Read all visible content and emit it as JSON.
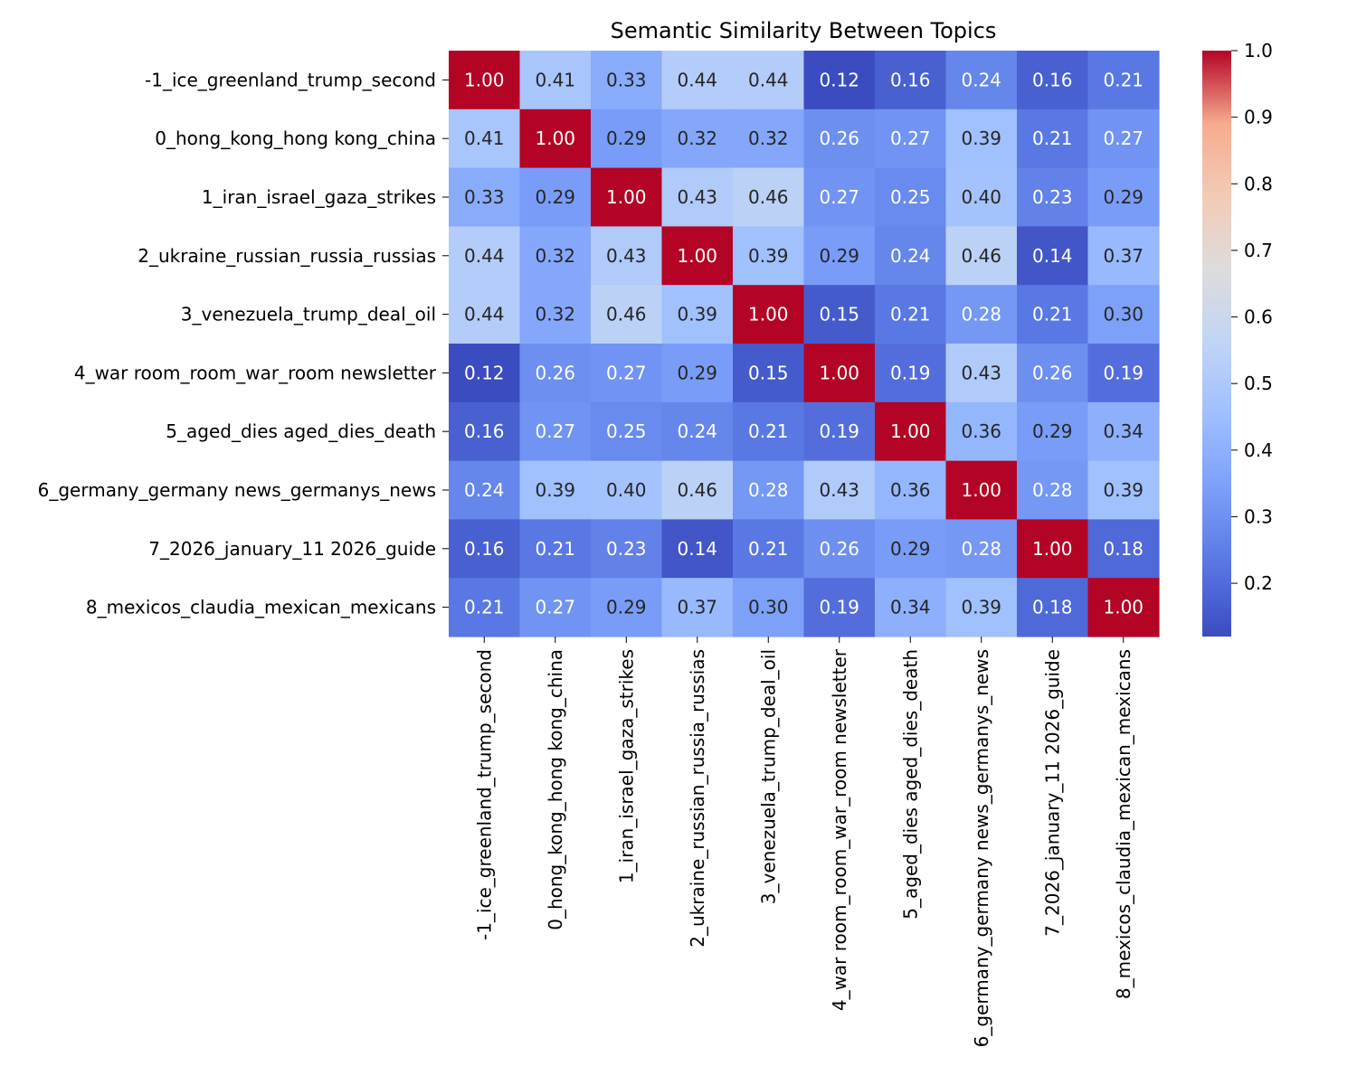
{
  "chart_data": {
    "type": "heatmap",
    "title": "Semantic Similarity Between Topics",
    "xlabel": "",
    "ylabel": "",
    "labels": [
      "-1_ice_greenland_trump_second",
      "0_hong_kong_hong kong_china",
      "1_iran_israel_gaza_strikes",
      "2_ukraine_russian_russia_russias",
      "3_venezuela_trump_deal_oil",
      "4_war room_room_war_room newsletter",
      "5_aged_dies aged_dies_death",
      "6_germany_germany news_germanys_news",
      "7_2026_january_11 2026_guide",
      "8_mexicos_claudia_mexican_mexicans"
    ],
    "values": [
      [
        1.0,
        0.41,
        0.33,
        0.44,
        0.44,
        0.12,
        0.16,
        0.24,
        0.16,
        0.21
      ],
      [
        0.41,
        1.0,
        0.29,
        0.32,
        0.32,
        0.26,
        0.27,
        0.39,
        0.21,
        0.27
      ],
      [
        0.33,
        0.29,
        1.0,
        0.43,
        0.46,
        0.27,
        0.25,
        0.4,
        0.23,
        0.29
      ],
      [
        0.44,
        0.32,
        0.43,
        1.0,
        0.39,
        0.29,
        0.24,
        0.46,
        0.14,
        0.37
      ],
      [
        0.44,
        0.32,
        0.46,
        0.39,
        1.0,
        0.15,
        0.21,
        0.28,
        0.21,
        0.3
      ],
      [
        0.12,
        0.26,
        0.27,
        0.29,
        0.15,
        1.0,
        0.19,
        0.43,
        0.26,
        0.19
      ],
      [
        0.16,
        0.27,
        0.25,
        0.24,
        0.21,
        0.19,
        1.0,
        0.36,
        0.29,
        0.34
      ],
      [
        0.24,
        0.39,
        0.4,
        0.46,
        0.28,
        0.43,
        0.36,
        1.0,
        0.28,
        0.39
      ],
      [
        0.16,
        0.21,
        0.23,
        0.14,
        0.21,
        0.26,
        0.29,
        0.28,
        1.0,
        0.18
      ],
      [
        0.21,
        0.27,
        0.29,
        0.37,
        0.3,
        0.19,
        0.34,
        0.39,
        0.18,
        1.0
      ]
    ],
    "annotation_format": "0.00",
    "colormap": "coolwarm",
    "vmin": 0.12,
    "vmax": 1.0,
    "colorbar_ticks": [
      "1.0",
      "0.9",
      "0.8",
      "0.7",
      "0.6",
      "0.5",
      "0.4",
      "0.3",
      "0.2"
    ],
    "colorbar_tick_values": [
      1.0,
      0.9,
      0.8,
      0.7,
      0.6,
      0.5,
      0.4,
      0.3,
      0.2
    ],
    "legend": "colorbar-right"
  }
}
